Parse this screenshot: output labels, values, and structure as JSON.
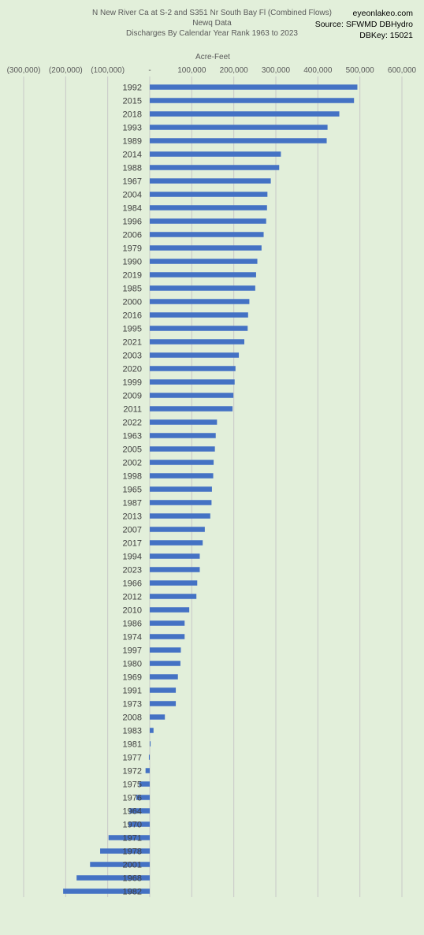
{
  "header": {
    "title_line1": "N New River Ca at S-2 and S351 Nr South Bay Fl (Combined Flows)",
    "title_line2": "Newq Data",
    "title_line3": "Discharges By Calendar Year Rank 1963 to 2023",
    "site": "eyeonlakeo.com",
    "source": "Source: SFWMD DBHydro",
    "dbkey": "DBKey: 15021"
  },
  "colors": {
    "background": "#e2efda",
    "bar": "#4472c4",
    "gridline": "#c8c8c8"
  },
  "chart_data": {
    "type": "bar",
    "orientation": "horizontal",
    "title": "N New River Ca at S-2 and S351 Nr South Bay Fl (Combined Flows)",
    "xlabel": "Acre-Feet",
    "ylabel": "",
    "xlim": [
      -300000,
      600000
    ],
    "x_ticks": [
      -300000,
      -200000,
      -100000,
      0,
      100000,
      200000,
      300000,
      400000,
      500000,
      600000
    ],
    "x_tick_labels": [
      "(300,000)",
      "(200,000)",
      "(100,000)",
      "-",
      "100,000",
      "200,000",
      "300,000",
      "400,000",
      "500,000",
      "600,000"
    ],
    "grid": true,
    "legend": "none",
    "categories": [
      "1992",
      "2015",
      "2018",
      "1993",
      "1989",
      "2014",
      "1988",
      "1967",
      "2004",
      "1984",
      "1996",
      "2006",
      "1979",
      "1990",
      "2019",
      "1985",
      "2000",
      "2016",
      "1995",
      "2021",
      "2003",
      "2020",
      "1999",
      "2009",
      "2011",
      "2022",
      "1963",
      "2005",
      "2002",
      "1998",
      "1965",
      "1987",
      "2013",
      "2007",
      "2017",
      "1994",
      "2023",
      "1966",
      "2012",
      "2010",
      "1986",
      "1974",
      "1997",
      "1980",
      "1969",
      "1991",
      "1973",
      "2008",
      "1983",
      "1981",
      "1977",
      "1972",
      "1975",
      "1976",
      "1964",
      "1970",
      "1971",
      "1978",
      "2001",
      "1968",
      "1982"
    ],
    "values": [
      494000,
      486000,
      451000,
      423000,
      421000,
      312000,
      308000,
      288000,
      280000,
      279000,
      277000,
      271000,
      266000,
      256000,
      253000,
      251000,
      237000,
      234000,
      233000,
      225000,
      212000,
      204000,
      202000,
      199000,
      197000,
      160000,
      157000,
      155000,
      152000,
      151000,
      148000,
      147000,
      144000,
      131000,
      126000,
      119000,
      119000,
      113000,
      111000,
      94000,
      83000,
      83000,
      74000,
      73000,
      67000,
      62000,
      62000,
      36000,
      9000,
      2000,
      -2000,
      -10000,
      -25000,
      -32000,
      -48000,
      -50000,
      -98000,
      -118000,
      -142000,
      -174000,
      -206000
    ]
  }
}
